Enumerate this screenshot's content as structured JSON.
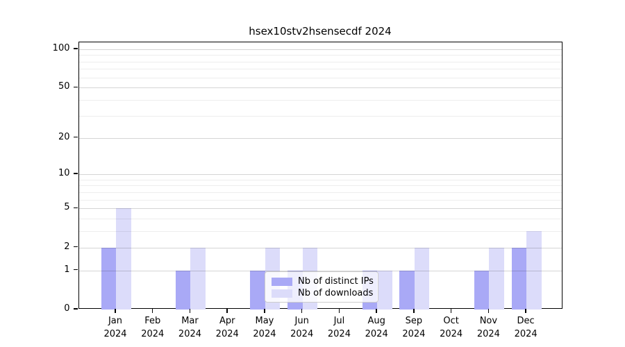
{
  "title": "hsex10stv2hsensecdf 2024",
  "chart_data": {
    "type": "bar",
    "title": "hsex10stv2hsensecdf 2024",
    "categories": [
      "Jan 2024",
      "Feb 2024",
      "Mar 2024",
      "Apr 2024",
      "May 2024",
      "Jun 2024",
      "Jul 2024",
      "Aug 2024",
      "Sep 2024",
      "Oct 2024",
      "Nov 2024",
      "Dec 2024"
    ],
    "series": [
      {
        "name": "Nb of distinct IPs",
        "color": "#a9a9f6",
        "values": [
          2,
          0,
          1,
          0,
          1,
          1,
          0,
          1,
          1,
          0,
          1,
          2
        ]
      },
      {
        "name": "Nb of downloads",
        "color": "#dcdcfa",
        "values": [
          5,
          0,
          2,
          0,
          2,
          2,
          0,
          1,
          2,
          0,
          2,
          3
        ]
      }
    ],
    "xlabel": "",
    "ylabel": "",
    "yscale": "log1p",
    "ylim": [
      0,
      113
    ],
    "y_major_ticks": [
      0,
      1,
      2,
      5,
      10,
      20,
      50,
      100
    ],
    "y_minor_gridlines": [
      3,
      4,
      6,
      7,
      8,
      9,
      30,
      40,
      60,
      70,
      80,
      90
    ],
    "grid": "on",
    "legend_position": "lower center"
  },
  "legend": {
    "items": [
      {
        "label": "Nb of distinct IPs",
        "swatch_color": "#a9a9f6"
      },
      {
        "label": "Nb of downloads",
        "swatch_color": "#dcdcfa"
      }
    ]
  },
  "colors": {
    "background": "#ffffff",
    "bar_distinct_ips": "#a9a9f6",
    "bar_downloads": "#dcdcfa",
    "axis_spine": "#000000",
    "grid_major": "#d5d5d5",
    "grid_minor": "#ededed",
    "legend_border": "#cccccc",
    "text": "#000000"
  }
}
